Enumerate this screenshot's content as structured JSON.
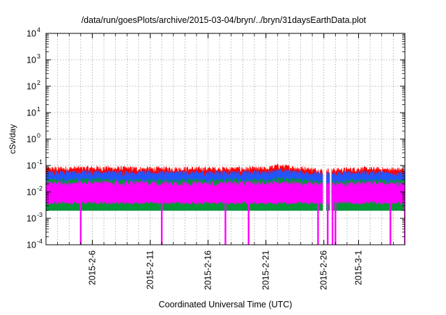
{
  "chart_data": {
    "type": "line",
    "title": "/data/run/goesPlots/archive/2015-03-04/bryn/../bryn/31daysEarthData.plot",
    "xlabel": "Coordinated Universal Time (UTC)",
    "ylabel": "cSv/day",
    "y_scale": "log",
    "ylim": [
      0.0001,
      10000
    ],
    "xlim": [
      "2015-02-02",
      "2015-03-05"
    ],
    "grid": true,
    "legend": "none",
    "x_ticks": [
      {
        "date": "2015-02-06",
        "label": "2015-2-6"
      },
      {
        "date": "2015-02-11",
        "label": "2015-2-11"
      },
      {
        "date": "2015-02-16",
        "label": "2015-2-16"
      },
      {
        "date": "2015-02-21",
        "label": "2015-2-21"
      },
      {
        "date": "2015-02-26",
        "label": "2015-2-26"
      },
      {
        "date": "2015-03-01",
        "label": "2015-3-1"
      }
    ],
    "y_ticks": [
      {
        "value": 0.0001,
        "base": "10",
        "exp": "-4"
      },
      {
        "value": 0.001,
        "base": "10",
        "exp": "-3"
      },
      {
        "value": 0.01,
        "base": "10",
        "exp": "-2"
      },
      {
        "value": 0.1,
        "base": "10",
        "exp": "-1"
      },
      {
        "value": 1,
        "base": "10",
        "exp": "0"
      },
      {
        "value": 10,
        "base": "10",
        "exp": "1"
      },
      {
        "value": 100,
        "base": "10",
        "exp": "2"
      },
      {
        "value": 1000,
        "base": "10",
        "exp": "3"
      },
      {
        "value": 10000,
        "base": "10",
        "exp": "4"
      }
    ],
    "series": [
      {
        "color": "#ff0000",
        "x": [
          "2015-02-02",
          "2015-02-06",
          "2015-02-11",
          "2015-02-16",
          "2015-02-21",
          "2015-02-22",
          "2015-02-26",
          "2015-03-01",
          "2015-03-05"
        ],
        "y": [
          0.07,
          0.075,
          0.07,
          0.07,
          0.07,
          0.09,
          0.06,
          0.07,
          0.065
        ]
      },
      {
        "color": "#2255ff",
        "x": [
          "2015-02-02",
          "2015-02-06",
          "2015-02-11",
          "2015-02-16",
          "2015-02-21",
          "2015-02-22",
          "2015-02-26",
          "2015-03-01",
          "2015-03-05"
        ],
        "y": [
          0.05,
          0.052,
          0.05,
          0.05,
          0.05,
          0.06,
          0.045,
          0.05,
          0.048
        ]
      },
      {
        "color": "#009933",
        "x": [
          "2015-02-02",
          "2015-02-06",
          "2015-02-11",
          "2015-02-16",
          "2015-02-21",
          "2015-02-22",
          "2015-02-26",
          "2015-03-01",
          "2015-03-05"
        ],
        "y": [
          0.025,
          0.026,
          0.024,
          0.025,
          0.025,
          0.028,
          0.022,
          0.025,
          0.024
        ]
      },
      {
        "color": "#ff00ff",
        "x": [
          "2015-02-02",
          "2015-02-06",
          "2015-02-11",
          "2015-02-16",
          "2015-02-21",
          "2015-02-22",
          "2015-02-26",
          "2015-03-01",
          "2015-03-05"
        ],
        "y_low": [
          0.004,
          0.004,
          0.004,
          0.004,
          0.004,
          0.004,
          0.004,
          0.004,
          0.004
        ],
        "y": [
          0.02,
          0.021,
          0.02,
          0.02,
          0.02,
          0.022,
          0.018,
          0.02,
          0.019
        ]
      }
    ],
    "dips": [
      "2015-02-05T00:00:00",
      "2015-02-12T00:00:00",
      "2015-02-17T12:00:00",
      "2015-02-19T12:00:00",
      "2015-02-25T12:00:00",
      "2015-02-26T08:00:00",
      "2015-02-26T18:00:00",
      "2015-02-27T00:00:00",
      "2015-03-03T18:00:00",
      "2015-03-05T00:00:00"
    ],
    "dip_floor": 0.0001,
    "data_gaps": [
      [
        "2015-02-25T22:00:00",
        "2015-02-26T05:00:00"
      ],
      [
        "2015-02-26T12:00:00",
        "2015-02-26T16:00:00"
      ]
    ]
  }
}
